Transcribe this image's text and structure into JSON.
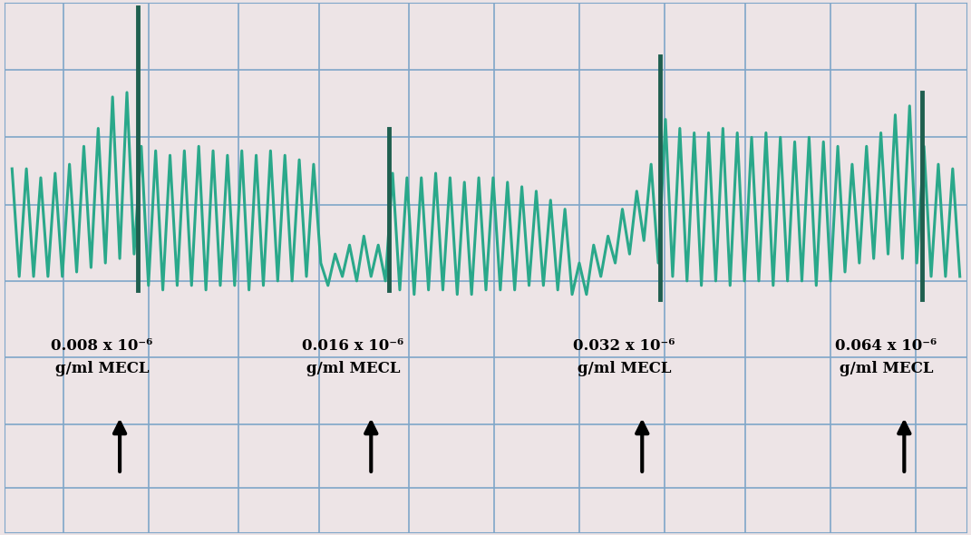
{
  "chart_data": {
    "type": "line",
    "tick_labels": false,
    "grid": true,
    "xlim": [
      0,
      1071
    ],
    "ylim": [
      0,
      590
    ],
    "xticks": [
      65,
      160,
      260,
      350,
      450,
      545,
      640,
      735,
      825,
      920,
      1015
    ],
    "yticks": [
      50,
      120,
      195,
      280,
      365,
      440,
      515
    ],
    "series": [
      {
        "color": "#2aa88a",
        "x": [
          8,
          16,
          24,
          32,
          40,
          48,
          56,
          64,
          72,
          80,
          88,
          96,
          104,
          112,
          120,
          128,
          136,
          144,
          152,
          160,
          168,
          176,
          184,
          192,
          200,
          208,
          216,
          224,
          232,
          240,
          248,
          256,
          264,
          272,
          280,
          288,
          296,
          304,
          312,
          320,
          328,
          336,
          344,
          352,
          360,
          368,
          376,
          384,
          392,
          400,
          408,
          416,
          424,
          432,
          440,
          448,
          456,
          464,
          472,
          480,
          488,
          496,
          504,
          512,
          520,
          528,
          536,
          544,
          552,
          560,
          568,
          576,
          584,
          592,
          600,
          608,
          616,
          624,
          632,
          640,
          648,
          656,
          664,
          672,
          680,
          688,
          696,
          704,
          712,
          720,
          728,
          736,
          744,
          752,
          760,
          768,
          776,
          784,
          792,
          800,
          808,
          816,
          824,
          832,
          840,
          848,
          856,
          864,
          872,
          880,
          888,
          896,
          904,
          912,
          920,
          928,
          936,
          944,
          952,
          960,
          968,
          976,
          984,
          992,
          1000,
          1008,
          1016,
          1024,
          1032,
          1040,
          1048,
          1056,
          1064
        ],
        "values": [
          405,
          285,
          405,
          285,
          395,
          285,
          400,
          285,
          410,
          290,
          430,
          295,
          450,
          300,
          485,
          305,
          490,
          310,
          430,
          275,
          425,
          270,
          420,
          275,
          425,
          275,
          430,
          270,
          425,
          275,
          420,
          275,
          425,
          270,
          420,
          275,
          425,
          280,
          420,
          280,
          415,
          285,
          410,
          300,
          275,
          310,
          285,
          320,
          280,
          330,
          285,
          320,
          280,
          400,
          270,
          395,
          265,
          395,
          270,
          400,
          270,
          395,
          265,
          390,
          265,
          395,
          270,
          395,
          270,
          390,
          270,
          385,
          275,
          380,
          275,
          370,
          270,
          360,
          265,
          300,
          265,
          320,
          285,
          330,
          300,
          360,
          310,
          380,
          325,
          410,
          300,
          460,
          285,
          450,
          280,
          445,
          275,
          445,
          280,
          450,
          275,
          445,
          280,
          440,
          280,
          445,
          275,
          440,
          280,
          435,
          280,
          440,
          275,
          435,
          280,
          430,
          290,
          410,
          300,
          430,
          305,
          445,
          310,
          465,
          305,
          475,
          300,
          430,
          285,
          410,
          285,
          405,
          285
        ]
      }
    ],
    "doses": {
      "color": "#1f5f4f",
      "items": [
        {
          "x": 148,
          "y_from": 270,
          "y_to": 585,
          "text": "0.008 x 10⁻⁶\ng/ml MECL"
        },
        {
          "x": 428,
          "y_from": 270,
          "y_to": 450,
          "text": "0.016 x 10⁻⁶\ng/ml MECL"
        },
        {
          "x": 730,
          "y_from": 260,
          "y_to": 530,
          "text": "0.032 x 10⁻⁶\ng/ml MECL"
        },
        {
          "x": 1022,
          "y_from": 260,
          "y_to": 490,
          "text": "0.064 x 10⁻⁶\ng/ml MECL"
        }
      ]
    }
  }
}
